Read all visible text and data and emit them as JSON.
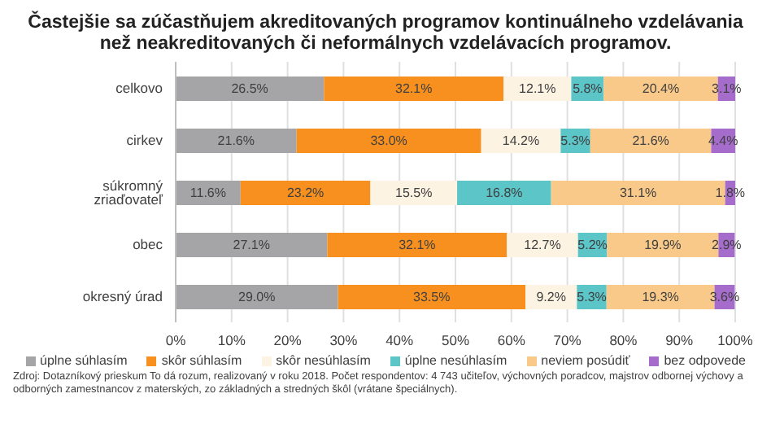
{
  "chart_data": {
    "type": "bar",
    "orientation": "horizontal",
    "stacked": true,
    "title": "Častejšie sa zúčastňujem akreditovaných programov kontinuálneho vzdelávania než neakreditovaných či neformálnych vzdelávacích programov.",
    "categories": [
      "celkovo",
      "cirkev",
      "súkromný zriaďovateľ",
      "obec",
      "okresný úrad"
    ],
    "series": [
      {
        "name": "úplne súhlasím",
        "color": "#a5a5a8",
        "values": [
          26.5,
          21.6,
          11.6,
          27.1,
          29.0
        ],
        "value_labels": [
          "26.5%",
          "21.6%",
          "11.6%",
          "27.1%",
          "29.0%"
        ]
      },
      {
        "name": "skôr súhlasím",
        "color": "#f7901e",
        "values": [
          32.1,
          33.0,
          23.2,
          32.1,
          33.5
        ],
        "value_labels": [
          "32.1%",
          "33.0%",
          "23.2%",
          "32.1%",
          "33.5%"
        ]
      },
      {
        "name": "skôr nesúhlasím",
        "color": "#fdf3e3",
        "values": [
          12.1,
          14.2,
          15.5,
          12.7,
          9.2
        ],
        "value_labels": [
          "12.1%",
          "14.2%",
          "15.5%",
          "12.7%",
          "9.2%"
        ]
      },
      {
        "name": "úplne nesúhlasím",
        "color": "#5bc5c8",
        "values": [
          5.8,
          5.3,
          16.8,
          5.2,
          5.3
        ],
        "value_labels": [
          "5.8%",
          "5.3%",
          "16.8%",
          "5.2%",
          "5.3%"
        ]
      },
      {
        "name": "neviem posúdiť",
        "color": "#f9c98a",
        "values": [
          20.4,
          21.6,
          31.1,
          19.9,
          19.3
        ],
        "value_labels": [
          "20.4%",
          "21.6%",
          "31.1%",
          "19.9%",
          "19.3%"
        ]
      },
      {
        "name": "bez odpovede",
        "color": "#a66ccc",
        "values": [
          3.1,
          4.4,
          1.8,
          2.9,
          3.6
        ],
        "value_labels": [
          "3.1%",
          "4.4%",
          "1.8%",
          "2.9%",
          "3.6%"
        ]
      }
    ],
    "xlim": [
      0,
      100
    ],
    "xticks": [
      {
        "value": 0,
        "label": "0%"
      },
      {
        "value": 10,
        "label": "10%"
      },
      {
        "value": 20,
        "label": "20%"
      },
      {
        "value": 30,
        "label": "30%"
      },
      {
        "value": 40,
        "label": "40%"
      },
      {
        "value": 50,
        "label": "50%"
      },
      {
        "value": 60,
        "label": "60%"
      },
      {
        "value": 70,
        "label": "70%"
      },
      {
        "value": 80,
        "label": "80%"
      },
      {
        "value": 90,
        "label": "90%"
      },
      {
        "value": 100,
        "label": "100%"
      }
    ],
    "grid": "x",
    "legend": "bottom",
    "annotations": [
      "Zdroj: Dotazníkový prieskum To dá rozum, realizovaný v roku 2018. Počet respondentov: 4 743 učiteľov, výchovných poradcov, majstrov odbornej výchovy a odborných zamestnancov z materských, zo základných a stredných škôl (vrátane špeciálnych)."
    ]
  }
}
